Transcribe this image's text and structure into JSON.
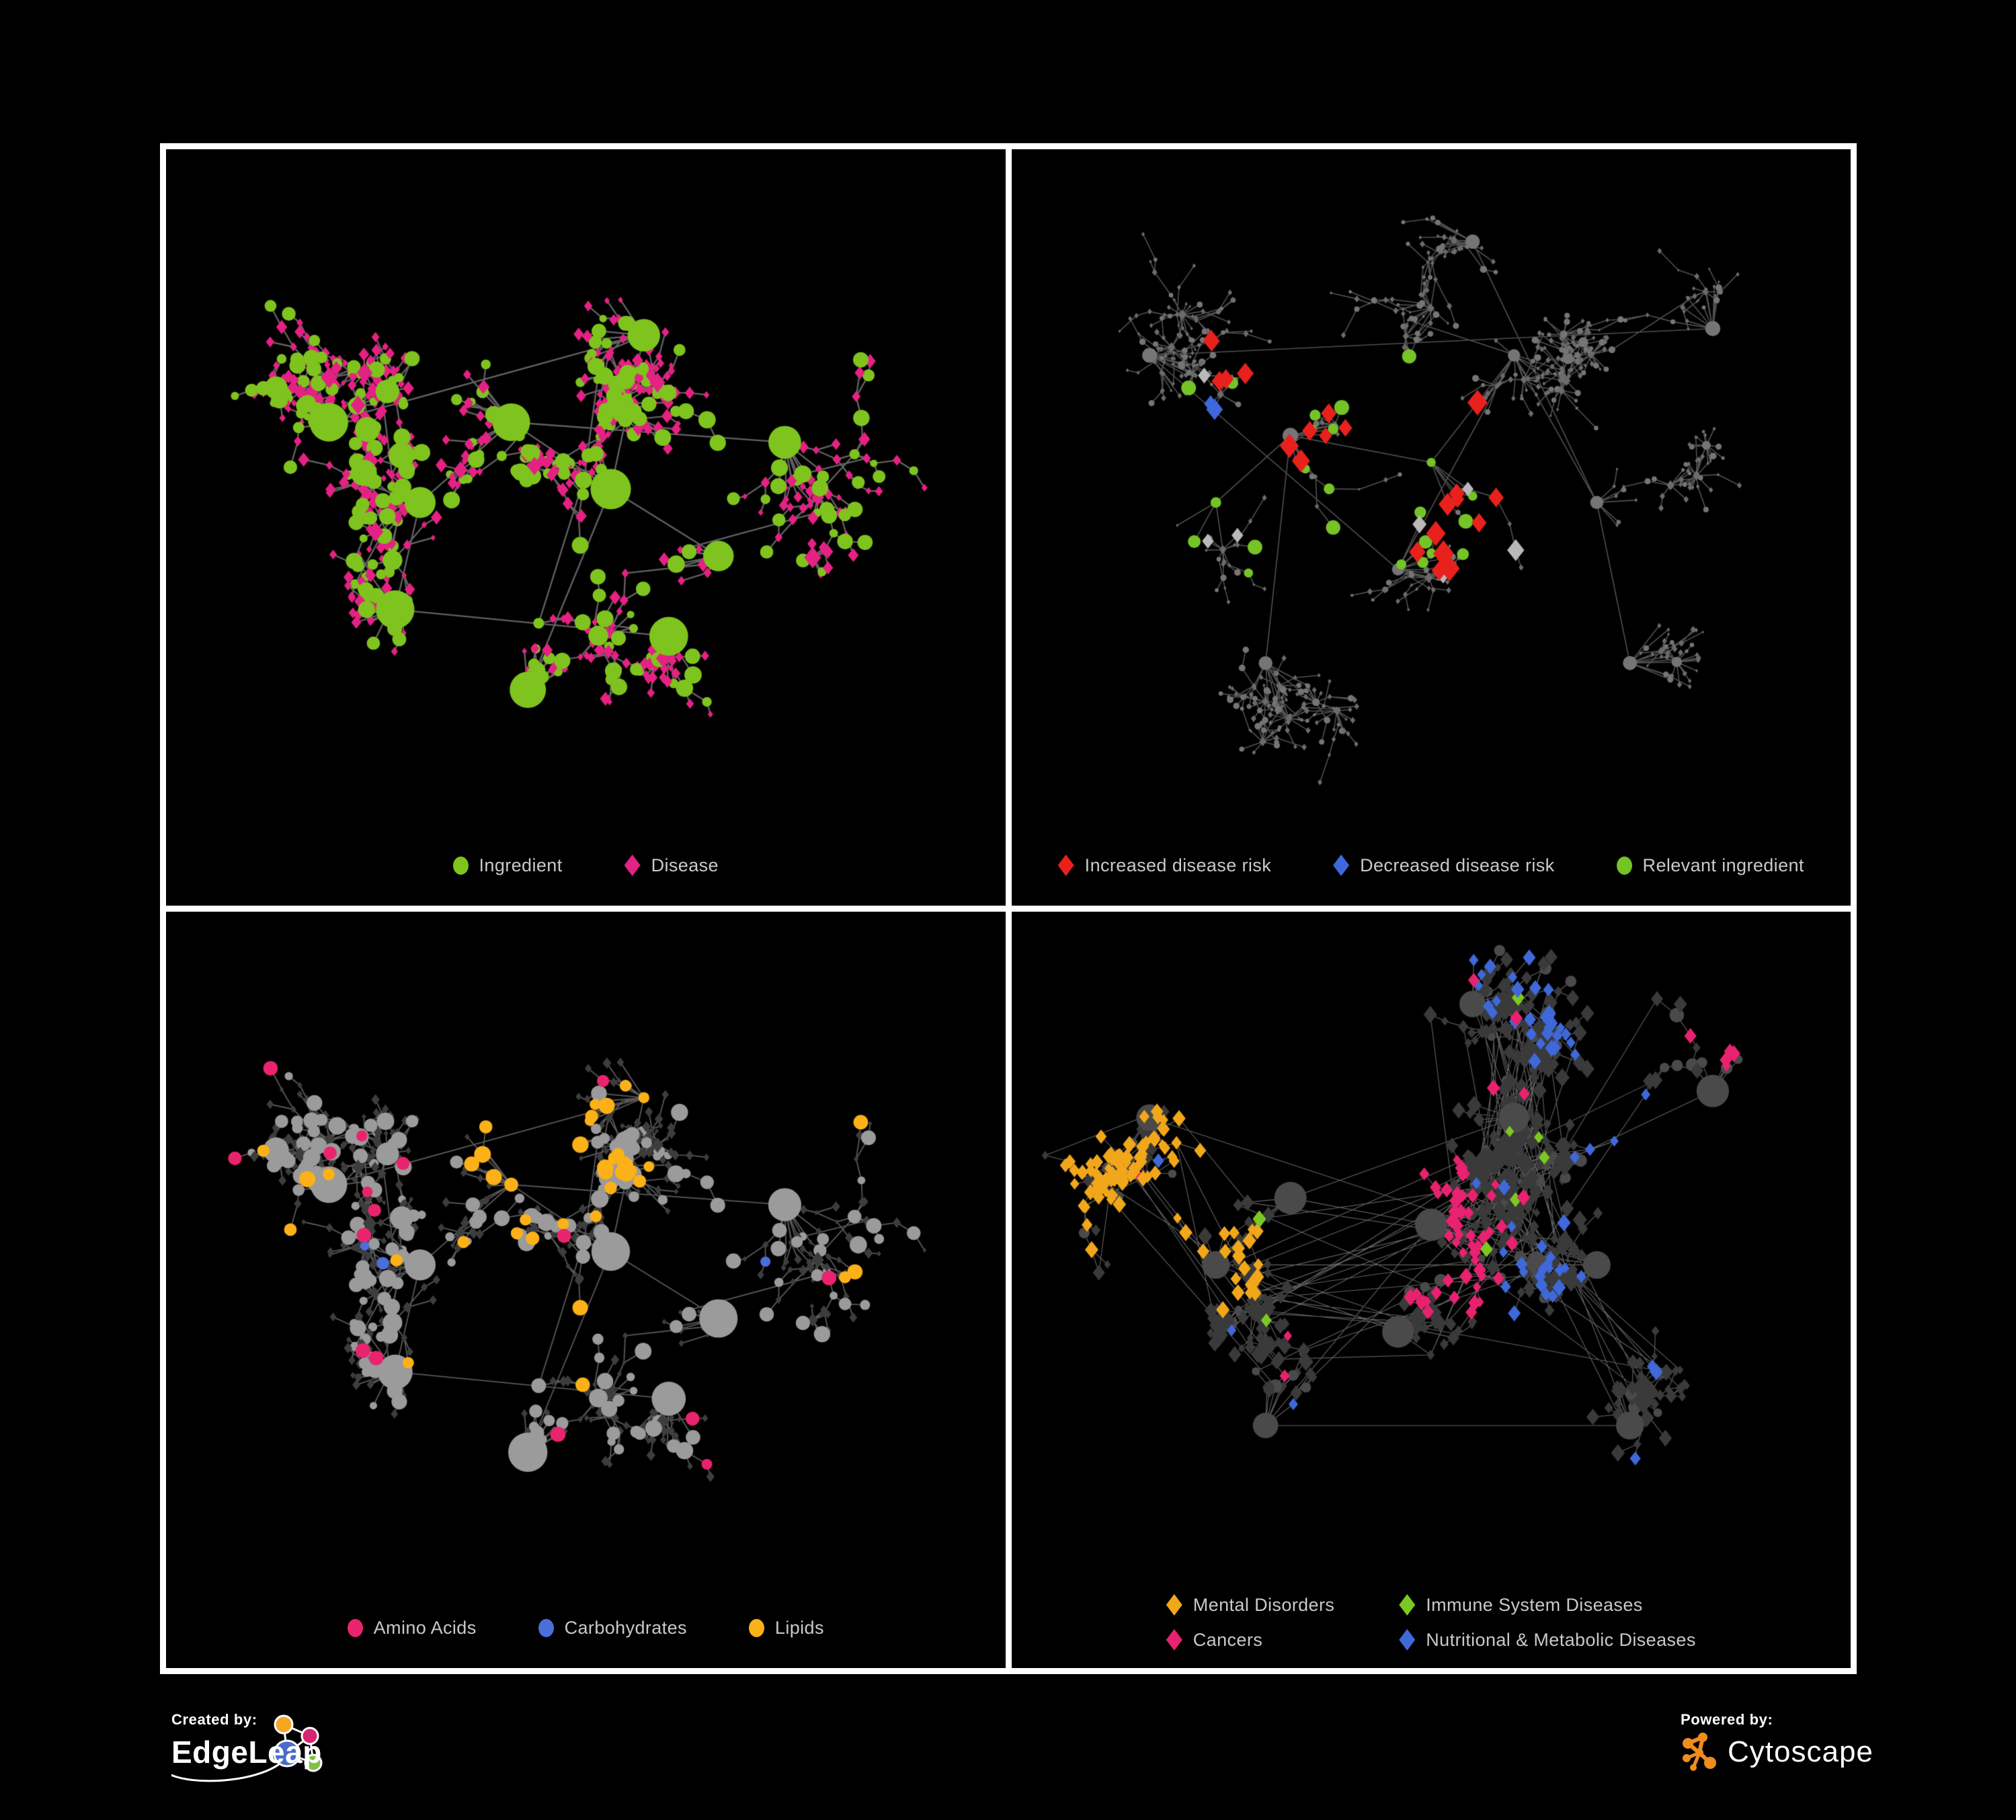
{
  "page": {
    "background": "#000000",
    "frame_color": "#ffffff",
    "legend_text_color": "#c9c9c9"
  },
  "panels": [
    {
      "id": "ingredient-disease",
      "legend": [
        {
          "label": "Ingredient",
          "shape": "circle",
          "color": "#7FC31E"
        },
        {
          "label": "Disease",
          "shape": "diamond",
          "color": "#E52183"
        }
      ],
      "legend_layout": "row",
      "render": {
        "seed": 11,
        "n": 780,
        "step": 27,
        "spread": 1.6,
        "burst": 0.05,
        "circleFrac": 0.32,
        "extra": 0.05,
        "link": 240,
        "clusters": [
          [
            0.3,
            0.52
          ],
          [
            0.41,
            0.4
          ],
          [
            0.53,
            0.5
          ],
          [
            0.27,
            0.68
          ],
          [
            0.57,
            0.27
          ],
          [
            0.66,
            0.6
          ],
          [
            0.43,
            0.8
          ],
          [
            0.19,
            0.4
          ],
          [
            0.74,
            0.43
          ],
          [
            0.6,
            0.72
          ]
        ],
        "edge": "#6c6c6c",
        "ew": 2.4,
        "ea": 0.9,
        "circle": {
          "color": "#7FC31E",
          "size": 8.5
        },
        "diamond": {
          "color": "#E52183",
          "size": 7
        },
        "highlights": []
      }
    },
    {
      "id": "disease-risk",
      "legend": [
        {
          "label": "Increased disease risk",
          "shape": "diamond",
          "color": "#E8211D"
        },
        {
          "label": "Decreased disease risk",
          "shape": "diamond",
          "color": "#3E68DC"
        },
        {
          "label": "Relevant ingredient",
          "shape": "circle",
          "color": "#74C327"
        }
      ],
      "legend_layout": "row",
      "render": {
        "seed": 23,
        "n": 720,
        "step": 29,
        "spread": 1.7,
        "burst": 0.06,
        "circleFrac": 0.3,
        "extra": 0.03,
        "link": 260,
        "clusters": [
          [
            0.33,
            0.42
          ],
          [
            0.5,
            0.46
          ],
          [
            0.24,
            0.52
          ],
          [
            0.6,
            0.3
          ],
          [
            0.46,
            0.62
          ],
          [
            0.7,
            0.52
          ],
          [
            0.3,
            0.76
          ],
          [
            0.74,
            0.76
          ],
          [
            0.55,
            0.13
          ],
          [
            0.16,
            0.3
          ],
          [
            0.84,
            0.26
          ]
        ],
        "edge": "#595959",
        "ew": 1.6,
        "ea": 0.9,
        "circle": {
          "color": "#757575",
          "size": 3.4
        },
        "diamond": {
          "color": "#6b6b6b",
          "size": 3.4
        },
        "highlights": [
          {
            "shape": "diamond",
            "color": "#E8211D",
            "size": 16,
            "p": 0.5,
            "r": 0.085,
            "anchors": [
              [
                0.35,
                0.4
              ],
              [
                0.46,
                0.4
              ],
              [
                0.5,
                0.54
              ],
              [
                0.31,
                0.3
              ],
              [
                0.56,
                0.44
              ]
            ]
          },
          {
            "shape": "diamond",
            "color": "#E8211D",
            "size": 16,
            "p": 0.45,
            "r": 0.05,
            "anchors": [
              [
                0.68,
                0.8
              ],
              [
                0.75,
                0.86
              ],
              [
                0.62,
                0.56
              ]
            ]
          },
          {
            "shape": "diamond",
            "color": "#3E68DC",
            "size": 15,
            "p": 0.5,
            "r": 0.055,
            "anchors": [
              [
                0.235,
                0.5
              ],
              [
                0.26,
                0.42
              ],
              [
                0.88,
                0.38
              ]
            ]
          },
          {
            "shape": "diamond",
            "color": "#B9B9B9",
            "size": 14,
            "p": 0.22,
            "r": 0.075,
            "anchors": [
              [
                0.29,
                0.36
              ],
              [
                0.5,
                0.5
              ],
              [
                0.54,
                0.6
              ],
              [
                0.4,
                0.56
              ],
              [
                0.25,
                0.62
              ]
            ]
          },
          {
            "shape": "circle",
            "color": "#74C327",
            "size": 9,
            "p": 0.32,
            "r": 0.12,
            "anchors": [
              [
                0.3,
                0.42
              ],
              [
                0.44,
                0.46
              ],
              [
                0.54,
                0.5
              ],
              [
                0.36,
                0.3
              ],
              [
                0.58,
                0.6
              ],
              [
                0.25,
                0.55
              ]
            ]
          }
        ]
      }
    },
    {
      "id": "compound-classes",
      "legend": [
        {
          "label": "Amino Acids",
          "shape": "circle",
          "color": "#E9246E"
        },
        {
          "label": "Carbohydrates",
          "shape": "circle",
          "color": "#4A6FD8"
        },
        {
          "label": "Lipids",
          "shape": "circle",
          "color": "#FBB117"
        }
      ],
      "legend_layout": "row",
      "render": {
        "seed": 11,
        "n": 780,
        "step": 27,
        "spread": 1.6,
        "burst": 0.05,
        "circleFrac": 0.32,
        "extra": 0.05,
        "link": 240,
        "clusters": [
          [
            0.3,
            0.52
          ],
          [
            0.41,
            0.4
          ],
          [
            0.53,
            0.5
          ],
          [
            0.27,
            0.68
          ],
          [
            0.57,
            0.27
          ],
          [
            0.66,
            0.6
          ],
          [
            0.43,
            0.8
          ],
          [
            0.19,
            0.4
          ],
          [
            0.74,
            0.43
          ],
          [
            0.6,
            0.72
          ]
        ],
        "edge": "#666666",
        "ew": 1.9,
        "ea": 0.85,
        "circle": {
          "color": "#9b9b9b",
          "size": 8.5
        },
        "diamond": {
          "color": "#3d3d3d",
          "size": 5.5
        },
        "highlights": [
          {
            "shape": "circle",
            "color": "#FBB117",
            "size": 10,
            "p": 0.75,
            "r": 0.1,
            "anchors": [
              [
                0.42,
                0.3
              ]
            ]
          },
          {
            "shape": "circle",
            "color": "#FBB117",
            "size": 10,
            "p": 0.45,
            "r": 0.075,
            "anchors": [
              [
                0.4,
                0.52
              ],
              [
                0.52,
                0.42
              ]
            ]
          },
          {
            "shape": "circle",
            "color": "#4A6FD8",
            "size": 9,
            "p": 0.28,
            "r": 0.065,
            "anchors": [
              [
                0.45,
                0.25
              ],
              [
                0.37,
                0.21
              ]
            ]
          },
          {
            "shape": "circle",
            "color": "#FBB117",
            "size": 10,
            "p": 0.08,
            "r": 0.45,
            "anchors": [
              [
                0.5,
                0.52
              ]
            ]
          },
          {
            "shape": "circle",
            "color": "#E9246E",
            "size": 9.5,
            "p": 0.055,
            "r": 0.6,
            "anchors": [
              [
                0.5,
                0.5
              ]
            ]
          },
          {
            "shape": "circle",
            "color": "#4A6FD8",
            "size": 9,
            "p": 0.02,
            "r": 0.6,
            "anchors": [
              [
                0.5,
                0.5
              ]
            ]
          }
        ]
      }
    },
    {
      "id": "disease-categories",
      "legend": [
        {
          "label": "Mental Disorders",
          "shape": "diamond",
          "color": "#F2A71B"
        },
        {
          "label": "Immune System Diseases",
          "shape": "diamond",
          "color": "#7CC822"
        },
        {
          "label": "Cancers",
          "shape": "diamond",
          "color": "#E82270"
        },
        {
          "label": "Nutritional & Metabolic Diseases",
          "shape": "diamond",
          "color": "#3F68D9"
        }
      ],
      "legend_layout": "grid2",
      "render": {
        "seed": 37,
        "n": 830,
        "step": 25,
        "spread": 1.8,
        "burst": 0.05,
        "circleFrac": 0.1,
        "extra": 0.22,
        "link": 420,
        "clusters": [
          [
            0.33,
            0.42
          ],
          [
            0.5,
            0.46
          ],
          [
            0.24,
            0.52
          ],
          [
            0.6,
            0.3
          ],
          [
            0.46,
            0.62
          ],
          [
            0.7,
            0.52
          ],
          [
            0.3,
            0.76
          ],
          [
            0.74,
            0.76
          ],
          [
            0.55,
            0.13
          ],
          [
            0.16,
            0.3
          ],
          [
            0.84,
            0.26
          ]
        ],
        "edge": "#8d8d8d",
        "ew": 1.1,
        "ea": 0.7,
        "circle": {
          "color": "#4a4a4a",
          "size": 7
        },
        "diamond": {
          "color": "#3a3a3a",
          "size": 9
        },
        "highlights": [
          {
            "shape": "diamond",
            "color": "#F2A71B",
            "size": 10.5,
            "p": 0.8,
            "r": 0.115,
            "anchors": [
              [
                0.16,
                0.38
              ]
            ]
          },
          {
            "shape": "diamond",
            "color": "#F2A71B",
            "size": 10.5,
            "p": 0.45,
            "r": 0.07,
            "anchors": [
              [
                0.1,
                0.5
              ],
              [
                0.25,
                0.52
              ],
              [
                0.3,
                0.3
              ],
              [
                0.35,
                0.12
              ],
              [
                0.13,
                0.12
              ]
            ]
          },
          {
            "shape": "diamond",
            "color": "#E82270",
            "size": 10.5,
            "p": 0.5,
            "r": 0.085,
            "anchors": [
              [
                0.47,
                0.42
              ],
              [
                0.52,
                0.52
              ],
              [
                0.42,
                0.52
              ],
              [
                0.88,
                0.22
              ]
            ]
          },
          {
            "shape": "diamond",
            "color": "#3F68D9",
            "size": 10.5,
            "p": 0.4,
            "r": 0.07,
            "anchors": [
              [
                0.62,
                0.56
              ],
              [
                0.76,
                0.3
              ],
              [
                0.68,
                0.14
              ],
              [
                0.86,
                0.44
              ],
              [
                0.3,
                0.78
              ],
              [
                0.55,
                0.07
              ],
              [
                0.16,
                0.06
              ],
              [
                0.92,
                0.62
              ],
              [
                0.45,
                0.9
              ],
              [
                0.8,
                0.85
              ]
            ]
          },
          {
            "shape": "diamond",
            "color": "#E82270",
            "size": 10.5,
            "p": 0.035,
            "r": 0.6,
            "anchors": [
              [
                0.5,
                0.5
              ]
            ]
          },
          {
            "shape": "diamond",
            "color": "#3F68D9",
            "size": 10.5,
            "p": 0.045,
            "r": 0.6,
            "anchors": [
              [
                0.5,
                0.5
              ]
            ]
          },
          {
            "shape": "diamond",
            "color": "#7CC822",
            "size": 10.5,
            "p": 0.012,
            "r": 0.6,
            "anchors": [
              [
                0.5,
                0.45
              ]
            ]
          }
        ]
      }
    }
  ],
  "footer": {
    "created_by_label": "Created by:",
    "edgeleap_brand": "EdgeLeap",
    "powered_by_label": "Powered by:",
    "cytoscape_brand": "Cytoscape",
    "edgeleap_node_colors": [
      "#F5A623",
      "#D6246E",
      "#4A6BC9",
      "#7DC242"
    ],
    "cytoscape_orange": "#F08C1E"
  }
}
